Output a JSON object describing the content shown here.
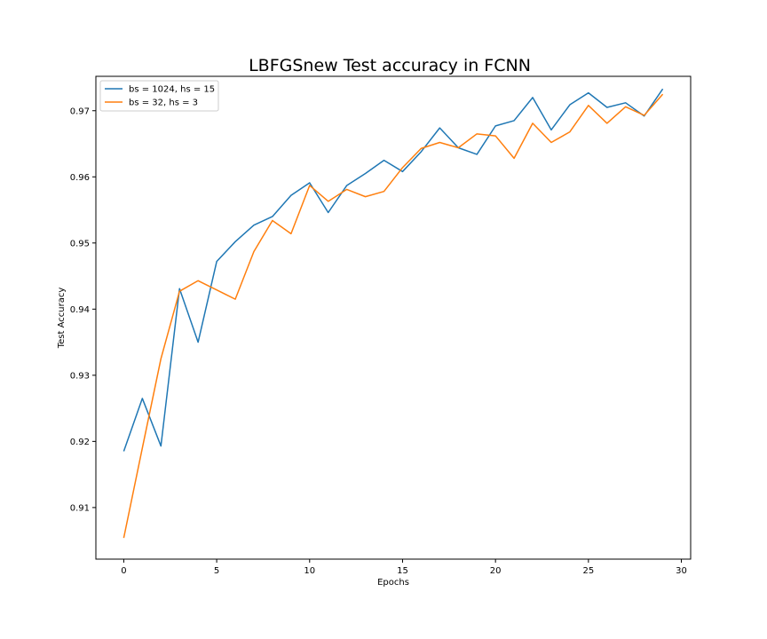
{
  "chart_data": {
    "type": "line",
    "title": "LBFGSnew Test accuracy in FCNN",
    "xlabel": "Epochs",
    "ylabel": "Test Accuracy",
    "xlim": [
      -1.5,
      30.5
    ],
    "ylim": [
      0.9022,
      0.9752
    ],
    "x_ticks": [
      0,
      5,
      10,
      15,
      20,
      25,
      30
    ],
    "y_ticks": [
      0.91,
      0.92,
      0.93,
      0.94,
      0.95,
      0.96,
      0.97
    ],
    "x_tick_labels": [
      "0",
      "5",
      "10",
      "15",
      "20",
      "25",
      "30"
    ],
    "y_tick_labels": [
      "0.91",
      "0.92",
      "0.93",
      "0.94",
      "0.95",
      "0.96",
      "0.97"
    ],
    "grid": false,
    "legend_position": "top-left",
    "x": [
      0,
      1,
      2,
      3,
      4,
      5,
      6,
      7,
      8,
      9,
      10,
      11,
      12,
      13,
      14,
      15,
      16,
      17,
      18,
      19,
      20,
      21,
      22,
      23,
      24,
      25,
      26,
      27,
      28,
      29
    ],
    "series": [
      {
        "name": "bs = 1024, hs = 15",
        "color": "#1f77b4",
        "values": [
          0.9185,
          0.9265,
          0.9193,
          0.9431,
          0.935,
          0.9472,
          0.9502,
          0.9527,
          0.954,
          0.9572,
          0.9591,
          0.9546,
          0.9587,
          0.9605,
          0.9625,
          0.9608,
          0.9638,
          0.9674,
          0.9644,
          0.9634,
          0.9677,
          0.9685,
          0.972,
          0.9671,
          0.9709,
          0.9727,
          0.9705,
          0.9712,
          0.9692,
          0.9733
        ]
      },
      {
        "name": "bs = 32, hs = 3",
        "color": "#ff7f0e",
        "values": [
          0.9054,
          0.919,
          0.9325,
          0.9427,
          0.9443,
          0.9429,
          0.9415,
          0.9487,
          0.9534,
          0.9514,
          0.9587,
          0.9563,
          0.9581,
          0.957,
          0.9578,
          0.9614,
          0.9643,
          0.9652,
          0.9644,
          0.9665,
          0.9662,
          0.9628,
          0.9681,
          0.9652,
          0.9668,
          0.9708,
          0.9681,
          0.9706,
          0.9693,
          0.9725
        ]
      }
    ]
  }
}
